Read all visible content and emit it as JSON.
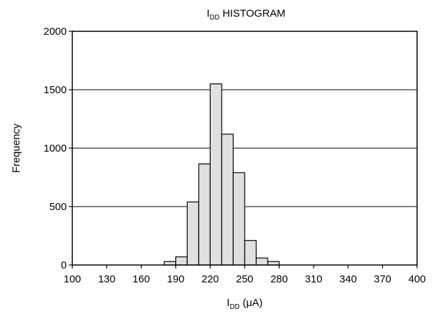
{
  "chart_data": {
    "type": "bar",
    "title": {
      "main": "I",
      "sub": "DD",
      "rest": " HISTOGRAM"
    },
    "xlabel": {
      "main": "I",
      "sub": "DD",
      "rest": " (μA)"
    },
    "ylabel": "Frequency",
    "xlim": [
      100,
      400
    ],
    "ylim": [
      0,
      2000
    ],
    "bin_width": 10,
    "xticks": [
      100,
      130,
      160,
      190,
      220,
      250,
      280,
      310,
      340,
      370,
      400
    ],
    "yticks": [
      0,
      500,
      1000,
      1500,
      2000
    ],
    "grid": "horizontal",
    "bins": [
      {
        "x": 180,
        "value": 30
      },
      {
        "x": 190,
        "value": 70
      },
      {
        "x": 200,
        "value": 540
      },
      {
        "x": 210,
        "value": 865
      },
      {
        "x": 220,
        "value": 1550
      },
      {
        "x": 230,
        "value": 1120
      },
      {
        "x": 240,
        "value": 790
      },
      {
        "x": 250,
        "value": 210
      },
      {
        "x": 260,
        "value": 60
      },
      {
        "x": 270,
        "value": 30
      }
    ],
    "colors": {
      "bar_fill": "#e0e0e0",
      "bar_stroke": "#000000"
    }
  }
}
